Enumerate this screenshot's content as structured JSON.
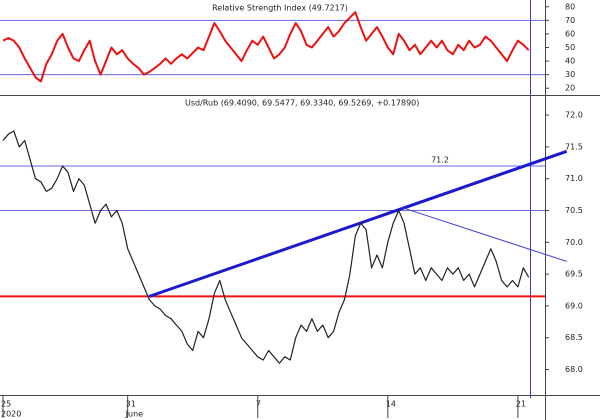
{
  "chart_data": [
    {
      "type": "line",
      "title": "Relative Strength Index (49.7217)",
      "series": [
        {
          "name": "RSI",
          "color": "#ee1111",
          "values": [
            55,
            57,
            55,
            50,
            42,
            35,
            28,
            25,
            38,
            45,
            55,
            60,
            50,
            42,
            40,
            48,
            55,
            40,
            30,
            40,
            50,
            45,
            48,
            42,
            38,
            35,
            30,
            32,
            35,
            38,
            42,
            38,
            42,
            45,
            42,
            46,
            50,
            48,
            58,
            68,
            62,
            55,
            50,
            45,
            40,
            48,
            55,
            52,
            58,
            50,
            42,
            45,
            50,
            60,
            68,
            62,
            52,
            50,
            55,
            60,
            65,
            58,
            62,
            68,
            72,
            76,
            65,
            55,
            60,
            65,
            58,
            50,
            45,
            60,
            55,
            48,
            52,
            45,
            50,
            55,
            50,
            55,
            48,
            45,
            52,
            48,
            55,
            50,
            52,
            58,
            55,
            50,
            45,
            40,
            48,
            55,
            52,
            48
          ]
        }
      ],
      "ylim": [
        15,
        85
      ],
      "yticks": [
        20,
        30,
        40,
        50,
        60,
        70,
        80
      ],
      "levels": [
        {
          "value": 70,
          "color": "#6666dd"
        },
        {
          "value": 30,
          "color": "#6666dd"
        }
      ]
    },
    {
      "type": "line",
      "title": "Usd/Rub (69.4090, 69.5477, 69.3340, 69.5269, +0.17890)",
      "categories": [
        "25",
        null,
        null,
        null,
        null,
        null,
        null,
        null,
        null,
        null,
        null,
        null,
        null,
        null,
        null,
        null,
        null,
        null,
        null,
        null,
        null,
        null,
        null,
        "31",
        null,
        null,
        null,
        null,
        null,
        null,
        null,
        null,
        null,
        null,
        null,
        null,
        null,
        null,
        null,
        null,
        null,
        null,
        null,
        null,
        null,
        null,
        null,
        "7",
        null,
        null,
        null,
        null,
        null,
        null,
        null,
        null,
        null,
        null,
        null,
        null,
        null,
        null,
        null,
        null,
        null,
        null,
        null,
        null,
        null,
        null,
        null,
        "14",
        null,
        null,
        null,
        null,
        null,
        null,
        null,
        null,
        null,
        null,
        null,
        null,
        null,
        null,
        null,
        null,
        null,
        null,
        null,
        null,
        null,
        null,
        null,
        "21",
        null,
        null
      ],
      "sub_categories": [
        "2020",
        null,
        null,
        null,
        null,
        null,
        null,
        null,
        null,
        null,
        null,
        null,
        null,
        null,
        null,
        null,
        null,
        null,
        null,
        null,
        null,
        null,
        null,
        "June",
        null,
        null,
        null,
        null,
        null,
        null,
        null,
        null,
        null,
        null,
        null,
        null,
        null,
        null,
        null,
        null,
        null,
        null,
        null,
        null,
        null,
        null,
        null,
        null,
        null,
        null,
        null,
        null,
        null,
        null,
        null,
        null,
        null,
        null,
        null,
        null,
        null,
        null,
        null,
        null,
        null,
        null,
        null,
        null,
        null,
        null,
        null,
        null,
        null,
        null,
        null,
        null,
        null,
        null,
        null,
        null,
        null,
        null,
        null,
        null,
        null,
        null,
        null,
        null,
        null,
        null,
        null,
        null,
        null,
        null,
        null,
        null,
        null,
        null
      ],
      "series": [
        {
          "name": "Usd/Rub",
          "color": "#222222",
          "values": [
            71.6,
            71.7,
            71.75,
            71.5,
            71.6,
            71.3,
            71.0,
            70.95,
            70.8,
            70.85,
            71.0,
            71.2,
            71.1,
            70.8,
            71.0,
            70.9,
            70.6,
            70.3,
            70.5,
            70.6,
            70.4,
            70.5,
            70.3,
            69.9,
            69.7,
            69.5,
            69.3,
            69.1,
            69.0,
            68.95,
            68.85,
            68.8,
            68.7,
            68.6,
            68.4,
            68.3,
            68.6,
            68.5,
            68.8,
            69.2,
            69.4,
            69.1,
            68.9,
            68.7,
            68.5,
            68.4,
            68.3,
            68.2,
            68.15,
            68.3,
            68.2,
            68.1,
            68.2,
            68.15,
            68.5,
            68.7,
            68.6,
            68.8,
            68.6,
            68.7,
            68.5,
            68.6,
            68.9,
            69.1,
            69.5,
            70.1,
            70.3,
            70.2,
            69.6,
            69.8,
            69.6,
            70.0,
            70.3,
            70.5,
            70.3,
            69.9,
            69.5,
            69.6,
            69.4,
            69.6,
            69.5,
            69.4,
            69.6,
            69.5,
            69.6,
            69.4,
            69.5,
            69.3,
            69.5,
            69.7,
            69.9,
            69.7,
            69.4,
            69.3,
            69.4,
            69.3,
            69.6,
            69.45
          ]
        }
      ],
      "ylim": [
        67.6,
        72.3
      ],
      "yticks": [
        {
          "value": 72,
          "label": "72.0"
        },
        71.5,
        {
          "value": 71,
          "label": "71.0"
        },
        70.5,
        {
          "value": 70,
          "label": "70.0"
        },
        69.5,
        {
          "value": 69,
          "label": "69.0"
        },
        68.5,
        {
          "value": 68,
          "label": "68.0"
        }
      ],
      "levels": [
        {
          "value": 71.2,
          "color": "#6666dd",
          "labeled": true
        },
        {
          "value": 70.5,
          "color": "#6666dd"
        },
        {
          "value": 69.15,
          "color": "#ee1111",
          "width": 2
        }
      ],
      "trendlines": [
        {
          "start": [
            27,
            69.15
          ],
          "end": [
            104,
            71.43
          ],
          "color": "#1a1ad0",
          "width": 3
        },
        {
          "start": [
            73.5,
            70.55
          ],
          "end": [
            104,
            69.7
          ],
          "color": "#4040d8",
          "width": 1
        }
      ]
    }
  ]
}
